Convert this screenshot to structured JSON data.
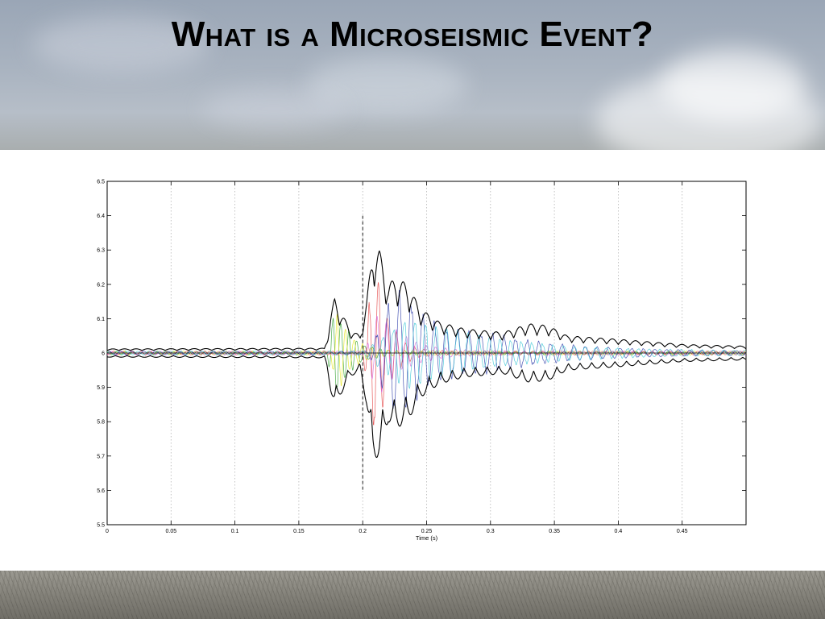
{
  "slide": {
    "title": "What is a Microseismic Event?"
  },
  "chart_data": {
    "type": "line",
    "title": "",
    "xlabel": "Time (s)",
    "ylabel": "",
    "xlim": [
      0,
      0.5
    ],
    "ylim": [
      5.5,
      6.5
    ],
    "x_ticks": [
      0,
      0.05,
      0.1,
      0.15,
      0.2,
      0.25,
      0.3,
      0.35,
      0.4,
      0.45
    ],
    "x_tick_labels": [
      "0",
      "0.05",
      "0.1",
      "0.15",
      "0.2",
      "0.25",
      "0.3",
      "0.35",
      "0.4",
      "0.45"
    ],
    "y_ticks": [
      5.5,
      5.6,
      5.7,
      5.8,
      5.9,
      6,
      6.1,
      6.2,
      6.3,
      6.4,
      6.5
    ],
    "y_tick_labels": [
      "5.5",
      "5.6",
      "5.7",
      "5.8",
      "5.9",
      "6",
      "6.1",
      "6.2",
      "6.3",
      "6.4",
      "6.5"
    ],
    "grid": "vertical dotted",
    "legend": "none",
    "baseline": 6.0,
    "pick_marker": {
      "x": 0.2,
      "y_range": [
        5.6,
        6.4
      ]
    },
    "envelope": {
      "color": "#000000",
      "points": [
        [
          0,
          0.012
        ],
        [
          0.17,
          0.014
        ],
        [
          0.172,
          0.04
        ],
        [
          0.175,
          0.11
        ],
        [
          0.178,
          0.16
        ],
        [
          0.183,
          0.12
        ],
        [
          0.19,
          0.07
        ],
        [
          0.198,
          0.05
        ],
        [
          0.203,
          0.15
        ],
        [
          0.208,
          0.31
        ],
        [
          0.213,
          0.3
        ],
        [
          0.22,
          0.2
        ],
        [
          0.226,
          0.22
        ],
        [
          0.235,
          0.2
        ],
        [
          0.245,
          0.13
        ],
        [
          0.26,
          0.09
        ],
        [
          0.28,
          0.07
        ],
        [
          0.31,
          0.06
        ],
        [
          0.33,
          0.085
        ],
        [
          0.345,
          0.08
        ],
        [
          0.36,
          0.05
        ],
        [
          0.4,
          0.04
        ],
        [
          0.45,
          0.025
        ],
        [
          0.5,
          0.02
        ]
      ]
    },
    "series": [
      {
        "color": "#2ca02c",
        "onset": 0.172,
        "peak": 0.178,
        "amp": 0.15,
        "decay": 0.012,
        "freq": 160
      },
      {
        "color": "#e5e51a",
        "onset": 0.174,
        "peak": 0.18,
        "amp": 0.12,
        "decay": 0.012,
        "freq": 150
      },
      {
        "color": "#e34040",
        "onset": 0.2,
        "peak": 0.21,
        "amp": 0.3,
        "decay": 0.01,
        "freq": 140
      },
      {
        "color": "#d65fd6",
        "onset": 0.202,
        "peak": 0.212,
        "amp": 0.14,
        "decay": 0.02,
        "freq": 130
      },
      {
        "color": "#2a3aa8",
        "onset": 0.205,
        "peak": 0.225,
        "amp": 0.2,
        "decay": 0.06,
        "freq": 110
      },
      {
        "color": "#3cc7d6",
        "onset": 0.2,
        "peak": 0.235,
        "amp": 0.11,
        "decay": 0.07,
        "freq": 120
      }
    ]
  }
}
